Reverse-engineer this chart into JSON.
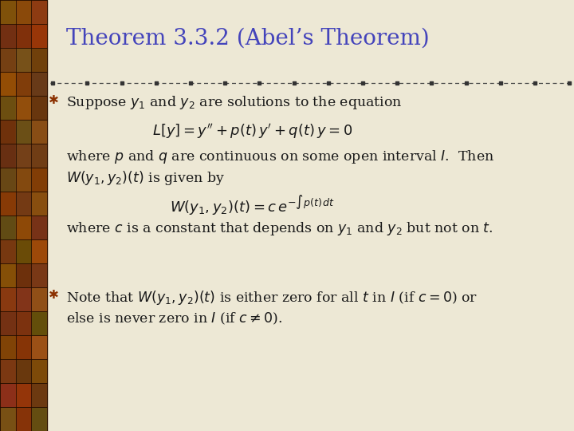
{
  "title": "Theorem 3.3.2 (Abel’s Theorem)",
  "title_color": "#4444BB",
  "title_fontsize": 20,
  "bg_color": "#EDE8D5",
  "left_bar_bg": "#7A4010",
  "text_color": "#1a1a1a",
  "bullet_color": "#8B3000",
  "body_fontsize": 12.5,
  "math_fontsize": 13,
  "line1_text": "Suppose $y_1$ and $y_2$ are solutions to the equation",
  "eq1": "$L[y] = y'' + p(t)\\,y' + q(t)\\,y = 0$",
  "body1a": "where $p$ and $q$ are continuous on some open interval $I$.  Then",
  "body1b": "$W(y_1,y_2)(t)$ is given by",
  "eq2": "$W(y_1, y_2)(t) = c\\,e^{-\\int p(t)\\,dt}$",
  "body2_text": "where $c$ is a constant that depends on $y_1$ and $y_2$ but not on $t$.",
  "note_text1": "Note that $W(y_1,y_2)(t)$ is either zero for all $t$ in $I$ (if $c = 0$) or",
  "note_text2": "else is never zero in $I$ (if $c \\neq 0$)."
}
